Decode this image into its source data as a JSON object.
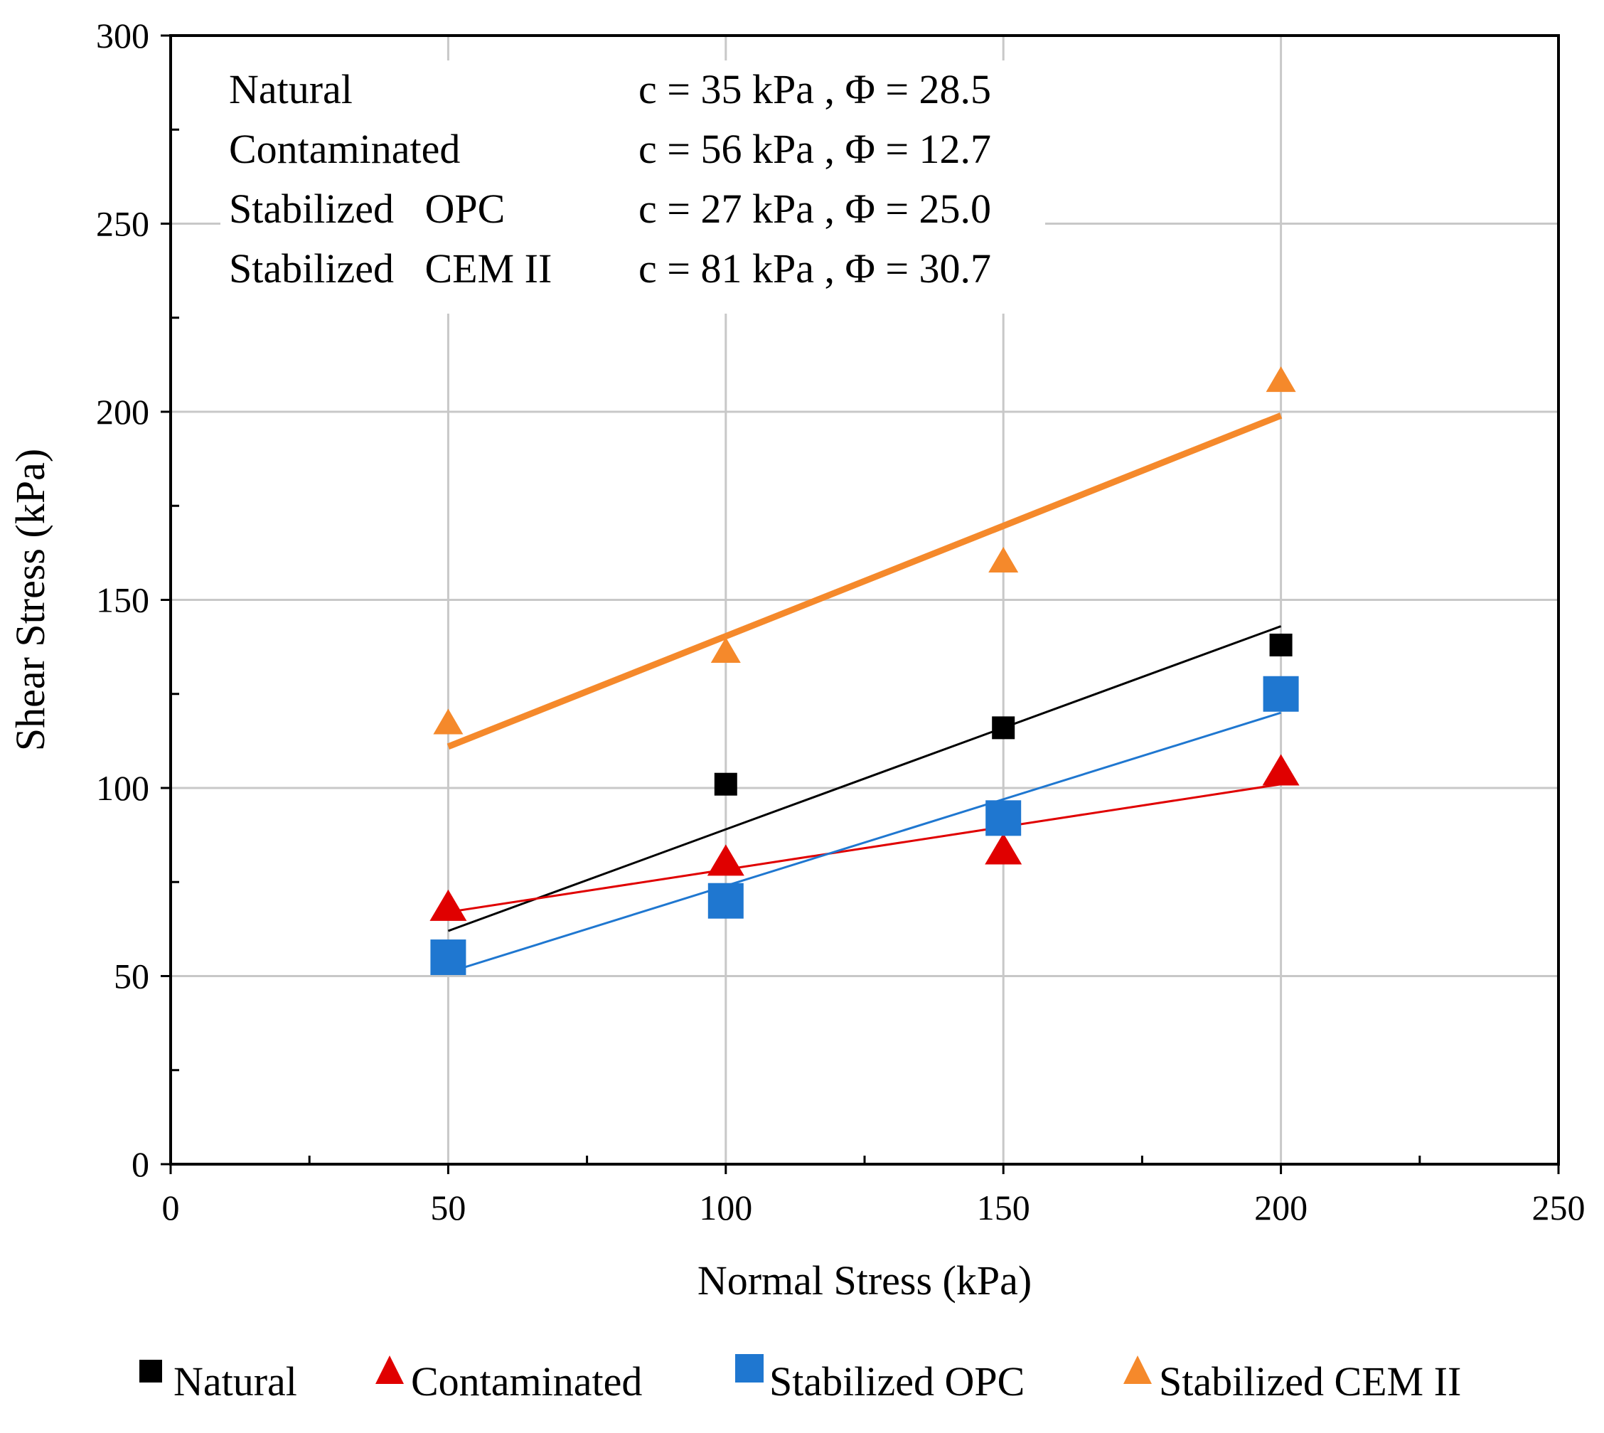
{
  "chart_data": {
    "type": "scatter",
    "title": "",
    "xlabel": "Normal Stress (kPa)",
    "ylabel": "Shear Stress (kPa)",
    "xlim": [
      0,
      250
    ],
    "ylim": [
      0,
      300
    ],
    "xticks": [
      0,
      50,
      100,
      150,
      200,
      250
    ],
    "yticks": [
      0,
      50,
      100,
      150,
      200,
      250,
      300
    ],
    "grid": true,
    "legend_position": "bottom",
    "series": [
      {
        "name": "Natural",
        "marker": "square",
        "color": "#000000",
        "x": [
          100,
          150,
          200
        ],
        "y": [
          101,
          116,
          138
        ],
        "trendline": {
          "x": [
            50,
            200
          ],
          "y": [
            62,
            143
          ],
          "width": "thin"
        }
      },
      {
        "name": "Contaminated",
        "marker": "triangle",
        "color": "#e00000",
        "x": [
          50,
          100,
          150,
          200
        ],
        "y": [
          68,
          80,
          83,
          104
        ],
        "trendline": {
          "x": [
            50,
            200
          ],
          "y": [
            67,
            101
          ],
          "width": "thin"
        }
      },
      {
        "name": "Stabilized OPC",
        "marker": "square-large",
        "color": "#1f77d0",
        "x": [
          50,
          100,
          150,
          200
        ],
        "y": [
          55,
          70,
          92,
          125
        ],
        "trendline": {
          "x": [
            50,
            200
          ],
          "y": [
            51,
            120
          ],
          "width": "thin"
        }
      },
      {
        "name": "Stabilized CEM II",
        "marker": "triangle",
        "color": "#f5892b",
        "x": [
          50,
          100,
          150,
          200
        ],
        "y": [
          117,
          136,
          160,
          208
        ],
        "trendline": {
          "x": [
            50,
            200
          ],
          "y": [
            111,
            199
          ],
          "width": "thick"
        }
      }
    ],
    "annotations": [
      {
        "label": "Natural",
        "value": "c = 35 kPa , Φ = 28.5"
      },
      {
        "label": "Contaminated",
        "value": "c = 56 kPa , Φ = 12.7"
      },
      {
        "label": "Stabilized   OPC",
        "value": "c = 27 kPa , Φ = 25.0"
      },
      {
        "label": "Stabilized   CEM II",
        "value": "c = 81 kPa , Φ = 30.7"
      }
    ]
  }
}
